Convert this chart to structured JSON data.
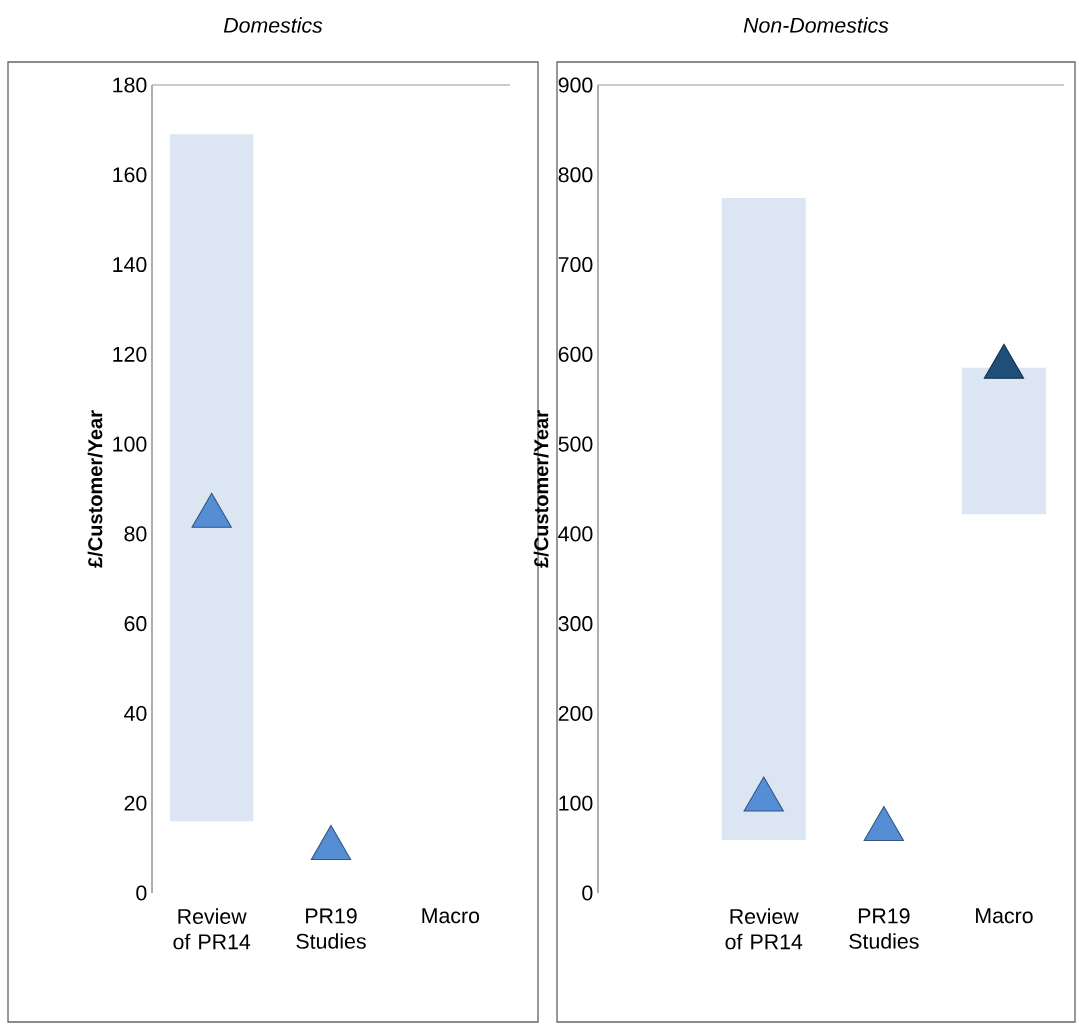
{
  "chart_data": [
    {
      "type": "bar",
      "title": "Domestics",
      "ylabel": "£/Customer/Year",
      "categories": [
        "Review of PR14",
        "PR19 Studies",
        "Macro"
      ],
      "ylim": [
        0,
        180
      ],
      "yticks": [
        0,
        20,
        40,
        60,
        80,
        100,
        120,
        140,
        160,
        180
      ],
      "marker": "triangle",
      "series": [
        {
          "color": "#dce6f2",
          "base": [
            16,
            null,
            null
          ],
          "values": [
            153,
            null,
            null
          ]
        },
        {
          "type": "scatter",
          "colors": [
            "#558ed5",
            "#558ed5",
            null
          ],
          "values": [
            84,
            10,
            null
          ]
        }
      ]
    },
    {
      "type": "bar",
      "title": "Non-Domestics",
      "ylabel": "£/Customer/Year",
      "categories": [
        "Review of PR14",
        "PR19 Studies",
        "Macro"
      ],
      "ylim": [
        0,
        900
      ],
      "yticks": [
        0,
        100,
        200,
        300,
        400,
        500,
        600,
        700,
        800,
        900
      ],
      "marker": "triangle",
      "series": [
        {
          "color": "#dce6f2",
          "base": [
            59,
            null,
            422
          ],
          "values": [
            715,
            null,
            163
          ]
        },
        {
          "type": "scatter",
          "colors": [
            "#558ed5",
            "#558ed5",
            "#1f4e79"
          ],
          "values": [
            104,
            71,
            586
          ]
        }
      ]
    }
  ]
}
